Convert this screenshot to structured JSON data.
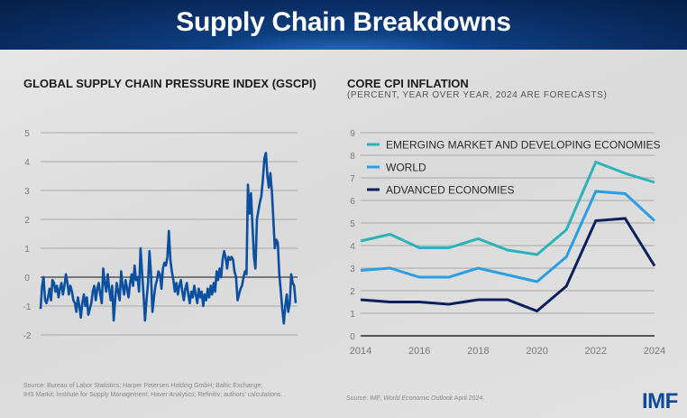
{
  "banner": {
    "title": "Supply Chain Breakdowns"
  },
  "left_chart": {
    "title": "GLOBAL SUPPLY CHAIN PRESSURE INDEX (GSCPI)",
    "source": [
      "Source: Bureau of Labor Statistics; Harper Petersen Holding GmbH; Baltic Exchange;",
      "IHS Markit; Institute for Supply Management; Haver Analytics; Refinitiv; authors' calculations."
    ]
  },
  "right_chart": {
    "title": "CORE CPI INFLATION",
    "subtitle": "(PERCENT, YEAR OVER YEAR, 2024 ARE FORECASTS)",
    "source_prefix": "Source: IMF, ",
    "source_italic": "World Economic Outlook",
    "source_suffix": " April 2024."
  },
  "logo": "IMF",
  "colors": {
    "gscpi": "#0b4fa0",
    "emde": "#2bb3b8",
    "world": "#2a9ee0",
    "advanced": "#0c1f5c",
    "zero_line": "#555555",
    "grid": "#a8a8a8"
  },
  "chart_data": [
    {
      "type": "line",
      "title": "GLOBAL SUPPLY CHAIN PRESSURE INDEX (GSCPI)",
      "xlabel": "",
      "ylabel": "",
      "ylim": [
        -2,
        5
      ],
      "yticks": [
        "5",
        "4",
        "3",
        "2",
        "1",
        "0",
        "-1",
        "-2"
      ],
      "ytick_values": [
        5,
        4,
        3,
        2,
        1,
        0,
        -1,
        -2
      ],
      "grid": true,
      "series": [
        {
          "name": "GSCPI",
          "values": [
            -1.1,
            -0.3,
            0.0,
            -0.8,
            -0.9,
            -0.7,
            -0.4,
            -0.8,
            -0.1,
            -0.2,
            -0.5,
            -0.3,
            -0.7,
            -0.4,
            -0.2,
            -0.6,
            -0.3,
            0.1,
            -0.2,
            -0.6,
            -0.3,
            -0.5,
            -0.8,
            -0.9,
            -1.2,
            -0.7,
            -1.0,
            -1.4,
            -0.9,
            -0.6,
            -1.0,
            -0.7,
            -1.3,
            -1.1,
            -0.9,
            -0.5,
            -0.3,
            -0.8,
            -0.4,
            -0.2,
            -0.6,
            -0.9,
            0.3,
            -0.2,
            -0.5,
            0.1,
            -0.4,
            -0.8,
            -0.3,
            -1.5,
            -0.8,
            -0.2,
            -0.5,
            -0.8,
            0.2,
            -0.3,
            -0.6,
            -0.1,
            -0.4,
            -0.7,
            -0.2,
            0.1,
            -0.3,
            0.4,
            -0.1,
            0.0,
            -0.5,
            1.0,
            0.2,
            -0.6,
            -1.5,
            -0.8,
            -0.2,
            0.9,
            0.1,
            -1.2,
            -0.7,
            -0.3,
            -0.1,
            0.2,
            0.1,
            -0.4,
            0.3,
            0.5,
            0.4,
            0.7,
            1.6,
            0.6,
            0.2,
            -0.1,
            -0.5,
            -0.2,
            -0.6,
            -0.3,
            -0.1,
            -0.5,
            -0.8,
            -0.4,
            -0.2,
            -0.6,
            -0.9,
            -0.5,
            -0.7,
            -0.3,
            -0.6,
            -0.9,
            -0.4,
            -0.7,
            -0.5,
            -1.0,
            -0.6,
            -0.8,
            -0.4,
            -0.7,
            -0.3,
            -0.6,
            -0.2,
            -0.5,
            0.2,
            -0.1,
            0.3,
            0.0,
            0.6,
            0.9,
            0.7,
            0.3,
            0.7,
            0.6,
            0.7,
            0.6,
            0.2,
            0.0,
            -0.8,
            -0.6,
            -0.4,
            -0.3,
            0.0,
            0.2,
            0.1,
            3.2,
            2.2,
            2.9,
            1.8,
            0.7,
            0.3,
            2.0,
            2.3,
            2.6,
            2.8,
            3.4,
            4.1,
            4.3,
            3.5,
            3.1,
            3.6,
            3.0,
            2.0,
            1.0,
            1.3,
            1.2,
            0.1,
            -0.5,
            -1.1,
            -1.6,
            -1.0,
            -0.6,
            -1.2,
            -0.9,
            0.1,
            -0.2,
            -0.3,
            -0.9
          ]
        }
      ]
    },
    {
      "type": "line",
      "title": "CORE CPI INFLATION",
      "subtitle": "(PERCENT, YEAR OVER YEAR, 2024 ARE FORECASTS)",
      "xlabel": "",
      "ylabel": "",
      "ylim": [
        0,
        9
      ],
      "yticks": [
        "9",
        "8",
        "7",
        "6",
        "5",
        "4",
        "3",
        "2",
        "1",
        "0"
      ],
      "ytick_values": [
        9,
        8,
        7,
        6,
        5,
        4,
        3,
        2,
        1,
        0
      ],
      "xticks": [
        "2014",
        "2016",
        "2018",
        "2020",
        "2022",
        "2024"
      ],
      "x": [
        2014,
        2015,
        2016,
        2017,
        2018,
        2019,
        2020,
        2021,
        2022,
        2023,
        2024
      ],
      "grid": true,
      "legend_position": "top",
      "series": [
        {
          "name": "EMERGING MARKET AND DEVELOPING ECONOMIES",
          "values": [
            4.2,
            4.5,
            3.9,
            3.9,
            4.3,
            3.8,
            3.6,
            4.7,
            7.7,
            7.2,
            6.8
          ]
        },
        {
          "name": "WORLD",
          "values": [
            2.9,
            3.0,
            2.6,
            2.6,
            3.0,
            2.7,
            2.4,
            3.5,
            6.4,
            6.3,
            5.1
          ]
        },
        {
          "name": "ADVANCED ECONOMIES",
          "values": [
            1.6,
            1.5,
            1.5,
            1.4,
            1.6,
            1.6,
            1.1,
            2.2,
            5.1,
            5.2,
            3.1
          ]
        }
      ]
    }
  ]
}
